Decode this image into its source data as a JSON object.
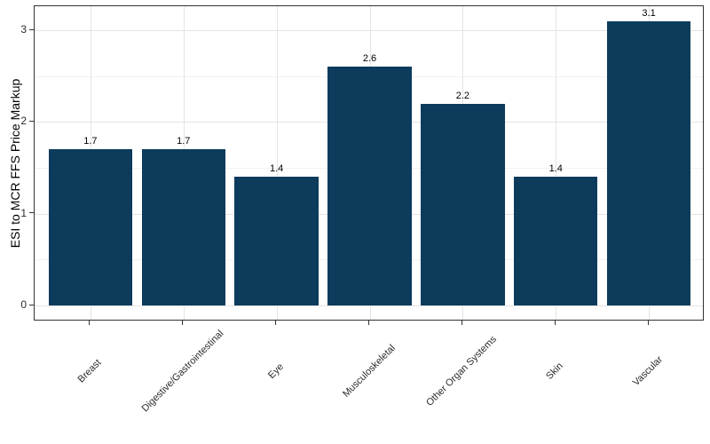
{
  "figure": {
    "background": "#ffffff"
  },
  "icon": {
    "name": "medical-cross-pulse-icon",
    "circle_fill": "#c9d2df",
    "ring_color": "#1d3a5c",
    "cross_color": "#e0492f",
    "pulse_color": "#ffffff"
  },
  "chart_data": {
    "type": "bar",
    "title": "",
    "xlabel": "",
    "ylabel": "ESI to MCR FFS Price Markup",
    "categories": [
      "Breast",
      "Digestive/Gastrointestinal",
      "Eye",
      "Musculoskeletal",
      "Other Organ Systems",
      "Skin",
      "Vascular"
    ],
    "values": [
      1.7,
      1.7,
      1.4,
      2.6,
      2.2,
      1.4,
      3.1
    ],
    "value_labels": [
      "1.7",
      "1.7",
      "1.4",
      "2.6",
      "2.2",
      "1.4",
      "3.1"
    ],
    "yticks": [
      0,
      1,
      2,
      3
    ],
    "yticks_minor": [
      0.5,
      1.5,
      2.5
    ],
    "ylim": [
      -0.17,
      3.26
    ],
    "legend": "none",
    "grid": "horizontal major+minor, vertical at category centers",
    "bar_color": "#0c3b5c",
    "panel_border_color": "#333333",
    "grid_major_color": "#e4e4e4",
    "grid_minor_color": "#f1f1f1",
    "axis_text_color": "#2b2b2b",
    "value_label_color": "#000000"
  }
}
